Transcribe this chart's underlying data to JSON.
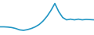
{
  "x": [
    0,
    1,
    2,
    3,
    4,
    5,
    6,
    7,
    8,
    9,
    10,
    11,
    12,
    13,
    14,
    15,
    16,
    17,
    18,
    19,
    20,
    21,
    22,
    23,
    24
  ],
  "y": [
    3.5,
    3.5,
    3.4,
    3.2,
    2.8,
    2.2,
    2.0,
    2.3,
    2.8,
    3.5,
    4.5,
    6.0,
    8.0,
    10.5,
    13.5,
    10.0,
    7.5,
    6.5,
    6.8,
    6.5,
    6.8,
    6.5,
    6.7,
    6.6,
    6.5
  ],
  "line_color": "#2196c4",
  "linewidth": 1.2,
  "background_color": "#ffffff",
  "ylim": [
    0,
    15
  ],
  "xlim": [
    0,
    24
  ]
}
